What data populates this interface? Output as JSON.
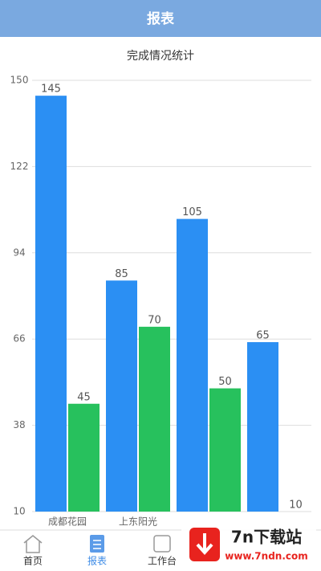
{
  "header": {
    "title": "报表"
  },
  "chart_data": {
    "type": "bar",
    "title": "完成情况统计",
    "categories": [
      "成都花园",
      "上东阳光",
      null,
      null
    ],
    "series": [
      {
        "color": "#2b8ff3",
        "values": [
          145,
          85,
          105,
          65
        ]
      },
      {
        "color": "#27c15d",
        "values": [
          45,
          70,
          50,
          10
        ]
      }
    ],
    "ylim": [
      10,
      150
    ],
    "yticks": [
      10,
      38,
      66,
      94,
      122,
      150
    ],
    "grid": true
  },
  "tabs": [
    "首页",
    "报表",
    "工作台"
  ],
  "watermark": {
    "title": "7n下载站",
    "url": "www.7ndn.com"
  }
}
